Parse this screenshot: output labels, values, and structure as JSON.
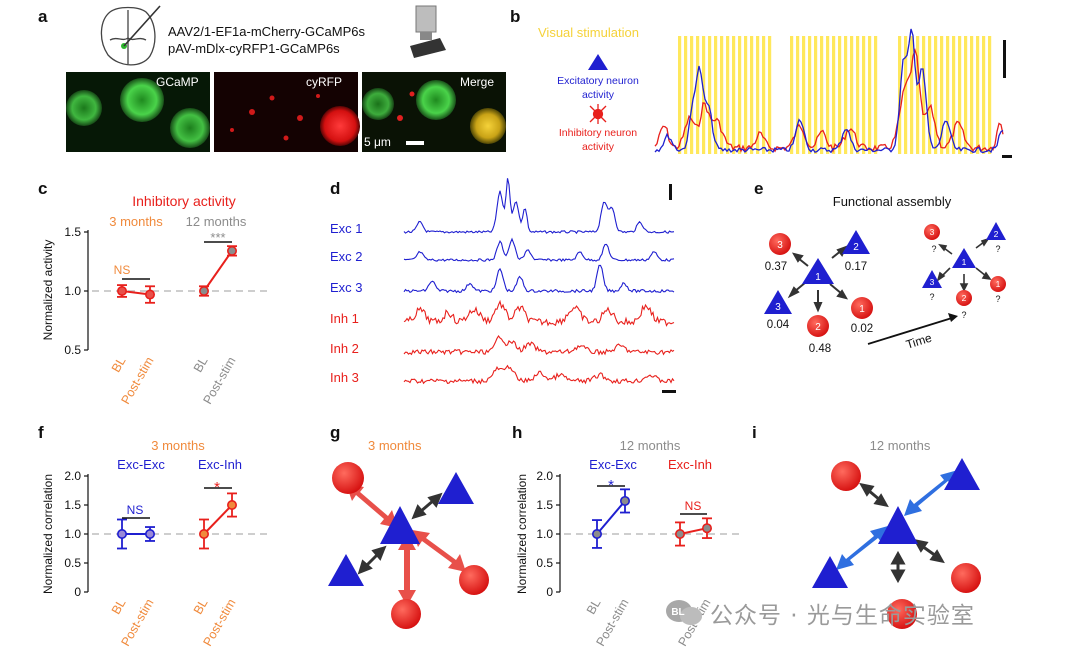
{
  "colors": {
    "exc": "#1f1fd0",
    "inh": "#e8201c",
    "orange": "#f08a3c",
    "gray": "#8c8c8c",
    "yellow": "#ffe85c",
    "yellow_text": "#f5d23a"
  },
  "panel_a": {
    "label": "a",
    "construct_1": "AAV2/1-EF1a-mCherry-GCaMP6s",
    "construct_2": "pAV-mDlx-cyRFP1-GCaMP6s",
    "image_gcamp": "GCaMP",
    "image_cyrfp": "cyRFP",
    "image_merge": "Merge",
    "scale": "5 μm"
  },
  "panel_b": {
    "label": "b",
    "title": "Visual stimulation",
    "legend_exc_1": "Excitatory neuron",
    "legend_exc_2": "activity",
    "legend_inh_1": "Inhibitory neuron",
    "legend_inh_2": "activity"
  },
  "panel_c": {
    "label": "c",
    "title": "Inhibitory activity",
    "group_3m": "3 months",
    "group_12m": "12 months",
    "sig_3m": "NS",
    "sig_12m": "***",
    "ylabel": "Normalized activity",
    "xticks": [
      "BL",
      "Post-stim",
      "BL",
      "Post-stim"
    ],
    "yticks": [
      "0.5",
      "1.0",
      "1.5"
    ]
  },
  "panel_d": {
    "label": "d",
    "traces": [
      "Exc 1",
      "Exc 2",
      "Exc 3",
      "Inh 1",
      "Inh 2",
      "Inh 3"
    ]
  },
  "panel_e": {
    "label": "e",
    "title": "Functional assembly",
    "time_label": "Time",
    "node_ids": [
      "1",
      "2",
      "3",
      "3",
      "2",
      "1",
      "1",
      "2",
      "3",
      "3",
      "2",
      "1"
    ],
    "weights": [
      "0.37",
      "0.17",
      "0.04",
      "0.48",
      "0.02"
    ],
    "unknown": "?"
  },
  "panel_f": {
    "label": "f",
    "title": "3 months",
    "series_1": "Exc-Exc",
    "series_2": "Exc-Inh",
    "sig_1": "NS",
    "sig_2": "*",
    "ylabel": "Normalized correlation",
    "xticks": [
      "BL",
      "Post-stim",
      "BL",
      "Post-stim"
    ],
    "yticks": [
      "0",
      "0.5",
      "1.0",
      "1.5",
      "2.0"
    ]
  },
  "panel_g": {
    "label": "g",
    "title": "3 months"
  },
  "panel_h": {
    "label": "h",
    "title": "12 months",
    "series_1": "Exc-Exc",
    "series_2": "Exc-Inh",
    "sig_1": "*",
    "sig_2": "NS",
    "ylabel": "Normalized correlation",
    "xticks": [
      "BL",
      "Post-stim",
      "BL",
      "Post-stim"
    ],
    "yticks": [
      "0",
      "0.5",
      "1.0",
      "1.5",
      "2.0"
    ]
  },
  "panel_i": {
    "label": "i",
    "title": "12 months"
  },
  "watermark": {
    "text": "公众号 · 光与生命实验室",
    "icon_text": "BL"
  },
  "chart_data": [
    {
      "id": "c",
      "type": "line",
      "title": "Inhibitory activity",
      "ylabel": "Normalized activity",
      "ylim": [
        0.5,
        1.5
      ],
      "series": [
        {
          "name": "3 months",
          "x": [
            "BL",
            "Post-stim"
          ],
          "values": [
            1.0,
            0.97
          ],
          "err": [
            0.05,
            0.07
          ]
        },
        {
          "name": "12 months",
          "x": [
            "BL",
            "Post-stim"
          ],
          "values": [
            1.0,
            1.34
          ],
          "err": [
            0.04,
            0.04
          ]
        }
      ]
    },
    {
      "id": "f",
      "type": "line",
      "title": "3 months",
      "ylabel": "Normalized correlation",
      "ylim": [
        0,
        2.0
      ],
      "series": [
        {
          "name": "Exc-Exc",
          "x": [
            "BL",
            "Post-stim"
          ],
          "values": [
            1.0,
            1.0
          ],
          "err": [
            0.25,
            0.12
          ]
        },
        {
          "name": "Exc-Inh",
          "x": [
            "BL",
            "Post-stim"
          ],
          "values": [
            1.0,
            1.5
          ],
          "err": [
            0.25,
            0.2
          ]
        }
      ]
    },
    {
      "id": "h",
      "type": "line",
      "title": "12 months",
      "ylabel": "Normalized correlation",
      "ylim": [
        0,
        2.0
      ],
      "series": [
        {
          "name": "Exc-Exc",
          "x": [
            "BL",
            "Post-stim"
          ],
          "values": [
            1.0,
            1.57
          ],
          "err": [
            0.24,
            0.2
          ]
        },
        {
          "name": "Exc-Inh",
          "x": [
            "BL",
            "Post-stim"
          ],
          "values": [
            1.0,
            1.1
          ],
          "err": [
            0.2,
            0.17
          ]
        }
      ]
    }
  ]
}
